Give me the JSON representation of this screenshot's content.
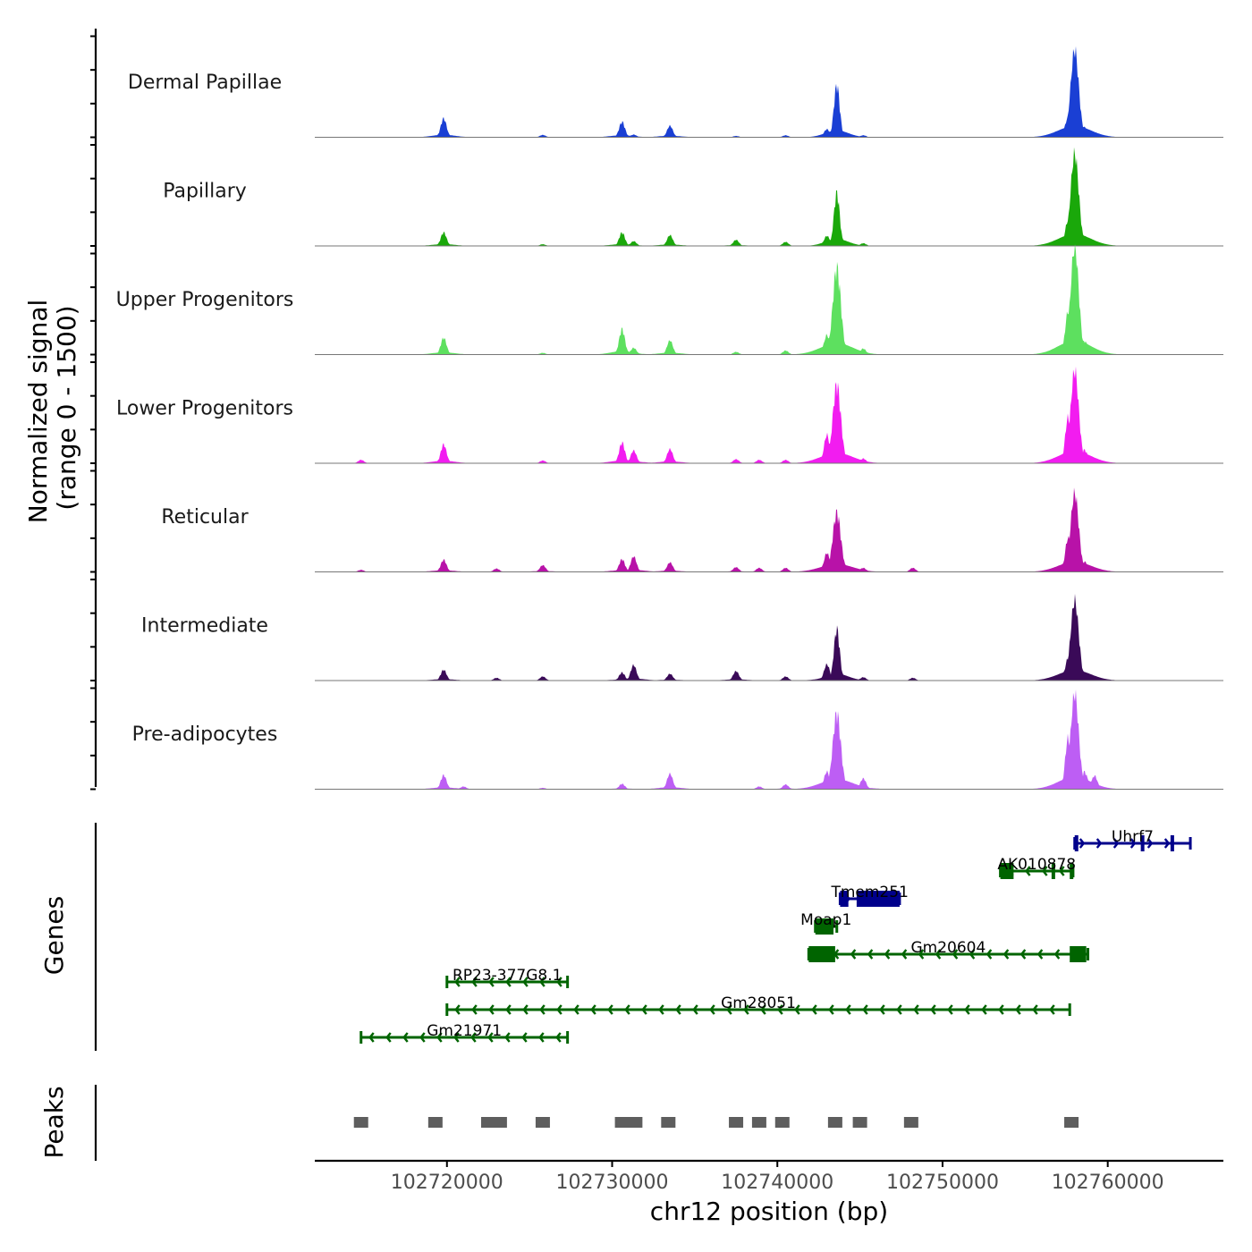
{
  "chart_data": {
    "type": "area",
    "chromosome": "chr12",
    "xlabel": "chr12 position (bp)",
    "ylabel": "Normalized signal",
    "ylabel_range": "(range 0 - 1500)",
    "ylim": [
      0,
      1500
    ],
    "xlim": [
      102712000,
      102767000
    ],
    "xticks": [
      102720000,
      102730000,
      102740000,
      102750000,
      102760000
    ],
    "xtick_labels": [
      "102720000",
      "102730000",
      "102740000",
      "102750000",
      "102760000"
    ],
    "peak_positions": [
      102714800,
      102719300,
      102722500,
      102723200,
      102725800,
      102730600,
      102731400,
      102733400,
      102737500,
      102738900,
      102740300,
      102743500,
      102745000,
      102748100,
      102757800
    ],
    "tracks": [
      {
        "name": "Dermal Papillae",
        "color": "#1a3fd4",
        "peaks": [
          [
            102719800,
            280
          ],
          [
            102725800,
            35
          ],
          [
            102730600,
            230
          ],
          [
            102731300,
            40
          ],
          [
            102733500,
            170
          ],
          [
            102737500,
            20
          ],
          [
            102740500,
            30
          ],
          [
            102743000,
            120
          ],
          [
            102743600,
            780
          ],
          [
            102745200,
            30
          ],
          [
            102757600,
            300
          ],
          [
            102758000,
            1290
          ],
          [
            102758600,
            150
          ]
        ]
      },
      {
        "name": "Papillary",
        "color": "#1aa80a",
        "peaks": [
          [
            102719800,
            200
          ],
          [
            102725800,
            25
          ],
          [
            102730600,
            200
          ],
          [
            102731300,
            70
          ],
          [
            102733500,
            160
          ],
          [
            102737500,
            90
          ],
          [
            102740500,
            60
          ],
          [
            102743000,
            150
          ],
          [
            102743600,
            790
          ],
          [
            102745200,
            40
          ],
          [
            102757600,
            380
          ],
          [
            102758000,
            1360
          ],
          [
            102758600,
            140
          ]
        ]
      },
      {
        "name": "Upper Progenitors",
        "color": "#5de05f",
        "peaks": [
          [
            102719800,
            250
          ],
          [
            102725800,
            25
          ],
          [
            102730600,
            380
          ],
          [
            102731300,
            100
          ],
          [
            102733500,
            210
          ],
          [
            102737500,
            40
          ],
          [
            102740500,
            60
          ],
          [
            102743000,
            290
          ],
          [
            102743600,
            1290
          ],
          [
            102745200,
            90
          ],
          [
            102757600,
            640
          ],
          [
            102758000,
            1600
          ],
          [
            102758600,
            200
          ]
        ]
      },
      {
        "name": "Lower Progenitors",
        "color": "#f21cf0",
        "peaks": [
          [
            102714800,
            50
          ],
          [
            102719800,
            280
          ],
          [
            102725800,
            40
          ],
          [
            102730600,
            310
          ],
          [
            102731300,
            190
          ],
          [
            102733500,
            210
          ],
          [
            102737500,
            60
          ],
          [
            102738900,
            50
          ],
          [
            102740500,
            50
          ],
          [
            102743000,
            420
          ],
          [
            102743600,
            1170
          ],
          [
            102745200,
            70
          ],
          [
            102757600,
            680
          ],
          [
            102758000,
            1370
          ],
          [
            102758600,
            200
          ]
        ]
      },
      {
        "name": "Reticular",
        "color": "#b812a8",
        "peaks": [
          [
            102714800,
            30
          ],
          [
            102719800,
            180
          ],
          [
            102723000,
            50
          ],
          [
            102725800,
            100
          ],
          [
            102730600,
            190
          ],
          [
            102731300,
            230
          ],
          [
            102733500,
            140
          ],
          [
            102737500,
            70
          ],
          [
            102738900,
            60
          ],
          [
            102740500,
            60
          ],
          [
            102743000,
            280
          ],
          [
            102743600,
            880
          ],
          [
            102745200,
            60
          ],
          [
            102748200,
            60
          ],
          [
            102757600,
            500
          ],
          [
            102758000,
            1160
          ],
          [
            102758600,
            150
          ]
        ]
      },
      {
        "name": "Intermediate",
        "color": "#3a0a58",
        "peaks": [
          [
            102719800,
            160
          ],
          [
            102723000,
            40
          ],
          [
            102725800,
            60
          ],
          [
            102730600,
            120
          ],
          [
            102731300,
            230
          ],
          [
            102733500,
            100
          ],
          [
            102737500,
            140
          ],
          [
            102740500,
            60
          ],
          [
            102743000,
            240
          ],
          [
            102743600,
            770
          ],
          [
            102745200,
            50
          ],
          [
            102748200,
            40
          ],
          [
            102757600,
            330
          ],
          [
            102758000,
            1180
          ],
          [
            102758600,
            80
          ]
        ]
      },
      {
        "name": "Pre-adipocytes",
        "color": "#bd5ef4",
        "peaks": [
          [
            102719800,
            210
          ],
          [
            102721000,
            40
          ],
          [
            102725800,
            20
          ],
          [
            102730600,
            80
          ],
          [
            102733500,
            230
          ],
          [
            102738900,
            40
          ],
          [
            102740500,
            70
          ],
          [
            102743000,
            260
          ],
          [
            102743600,
            1130
          ],
          [
            102745200,
            160
          ],
          [
            102757600,
            760
          ],
          [
            102758000,
            1410
          ],
          [
            102758600,
            260
          ],
          [
            102759200,
            200
          ]
        ]
      }
    ],
    "genes_label": "Genes",
    "peaks_label": "Peaks",
    "genes": [
      {
        "name": "Uhrf7",
        "start": 102758000,
        "end": 102765000,
        "strand": "+",
        "color": "#00008b",
        "row": 0,
        "exons": [
          [
            102758000,
            102758200
          ],
          [
            102762000,
            102762100
          ],
          [
            102763800,
            102763900
          ]
        ]
      },
      {
        "name": "AK010878",
        "start": 102753500,
        "end": 102757900,
        "strand": "-",
        "color": "#006400",
        "row": 1,
        "exons": [
          [
            102753500,
            102754300
          ],
          [
            102756600,
            102756700
          ],
          [
            102757700,
            102757900
          ]
        ]
      },
      {
        "name": "Tmem251",
        "start": 102743800,
        "end": 102747400,
        "strand": "+",
        "color": "#00008b",
        "row": 2,
        "exons": [
          [
            102743800,
            102744300
          ],
          [
            102744800,
            102747400
          ]
        ]
      },
      {
        "name": "Moap1",
        "start": 102742300,
        "end": 102743600,
        "strand": "-",
        "color": "#006400",
        "row": 3,
        "exons": [
          [
            102742300,
            102743400
          ]
        ]
      },
      {
        "name": "Gm20604",
        "start": 102741900,
        "end": 102758800,
        "strand": "-",
        "color": "#006400",
        "row": 4,
        "exons": [
          [
            102741900,
            102743500
          ],
          [
            102757700,
            102758700
          ]
        ]
      },
      {
        "name": "RP23-377G8.1",
        "start": 102720000,
        "end": 102727300,
        "strand": "-",
        "color": "#006400",
        "row": 5,
        "exons": []
      },
      {
        "name": "Gm28051",
        "start": 102720000,
        "end": 102757700,
        "strand": "-",
        "color": "#006400",
        "row": 6,
        "exons": []
      },
      {
        "name": "Gm21971",
        "start": 102714800,
        "end": 102727300,
        "strand": "-",
        "color": "#006400",
        "row": 7,
        "exons": []
      }
    ]
  }
}
